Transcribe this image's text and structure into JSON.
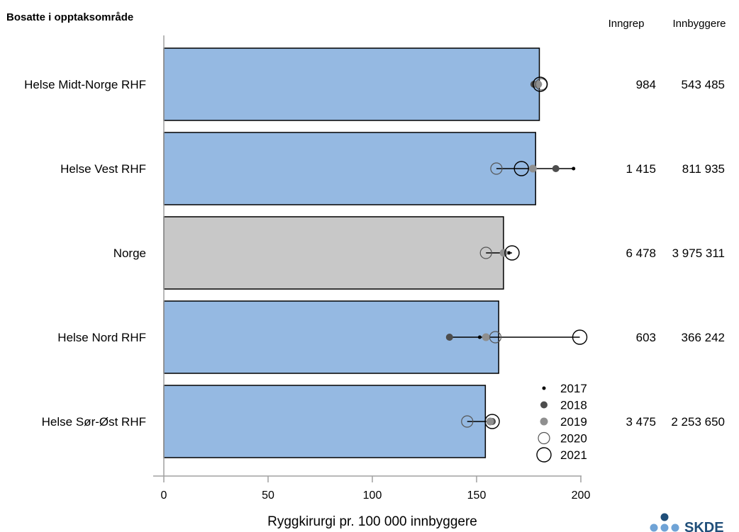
{
  "chart_data": {
    "type": "bar",
    "orientation": "horizontal",
    "row_header": "Bosatte i opptaksområde",
    "column_headers": [
      "Inngrep",
      "Innbyggere"
    ],
    "xlabel": "Ryggkirurgi pr. 100 000 innbyggere",
    "xlim": [
      0,
      200
    ],
    "xticks": [
      "0",
      "50",
      "100",
      "150",
      "200"
    ],
    "categories": [
      "Helse Midt-Norge RHF",
      "Helse Vest RHF",
      "Norge",
      "Helse Nord RHF",
      "Helse Sør-Øst RHF"
    ],
    "values": [
      180.1,
      178.3,
      162.9,
      160.6,
      154.2
    ],
    "bar_colors": [
      "#95b9e2",
      "#95b9e2",
      "#c8c8c8",
      "#95b9e2",
      "#95b9e2"
    ],
    "inngrep": [
      "984",
      "1 415",
      "6 478",
      "603",
      "3 475"
    ],
    "innbyggere": [
      "543 485",
      "811 935",
      "3 975 311",
      "366 242",
      "2 253 650"
    ],
    "series": [
      {
        "name": "2017",
        "values": [
          180.5,
          196.5,
          165.5,
          151.5,
          157.5
        ]
      },
      {
        "name": "2018",
        "values": [
          177.5,
          188.0,
          163.0,
          137.0,
          157.5
        ]
      },
      {
        "name": "2019",
        "values": [
          179.5,
          177.0,
          163.0,
          154.5,
          156.5
        ]
      },
      {
        "name": "2020",
        "values": [
          181.0,
          159.5,
          154.5,
          159.0,
          145.5
        ]
      },
      {
        "name": "2021",
        "values": [
          180.5,
          171.5,
          167.0,
          199.5,
          157.5
        ]
      }
    ],
    "legend_position": "bottom-right"
  },
  "logo": {
    "text": "SKDE"
  }
}
